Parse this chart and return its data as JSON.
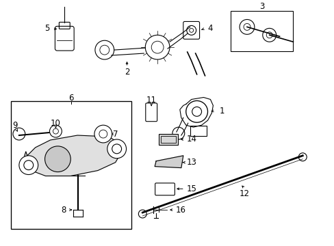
{
  "bg_color": "#ffffff",
  "lc": "#000000",
  "lw": 0.8,
  "fig_w": 4.89,
  "fig_h": 3.6,
  "dpi": 100
}
